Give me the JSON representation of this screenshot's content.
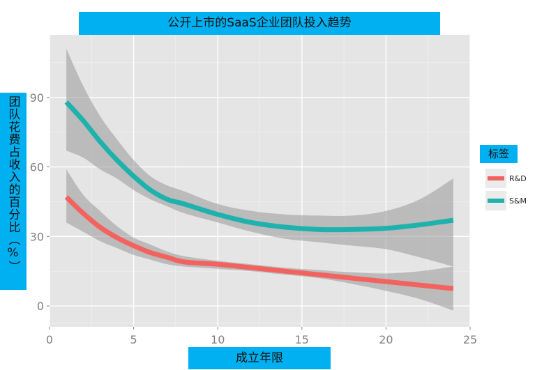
{
  "chart_data": {
    "type": "line",
    "title": "公开上市的SaaS企业团队投入趋势",
    "xlabel": "成立年限",
    "ylabel": "团队花费占收入的百分比（%）",
    "xlim": [
      0,
      25
    ],
    "ylim": [
      -9,
      117
    ],
    "x_ticks": [
      "0",
      "5",
      "10",
      "15",
      "20",
      "25"
    ],
    "y_ticks": [
      "0",
      "30",
      "60",
      "90"
    ],
    "grid": true,
    "legend": {
      "title": "标签",
      "position": "right"
    },
    "series": [
      {
        "name": "R&D",
        "color": "#f2635f",
        "x": [
          1,
          2,
          3,
          4,
          5,
          6,
          7,
          8,
          10,
          12,
          14,
          16,
          18,
          20,
          22,
          24
        ],
        "y": [
          47,
          40,
          34,
          29.5,
          26,
          23,
          21,
          19,
          18,
          16.5,
          15,
          13.5,
          12,
          10.5,
          9,
          7.5
        ],
        "ci_upper": [
          59,
          48,
          41,
          34.5,
          29.5,
          26.5,
          23.5,
          21.5,
          19.5,
          18,
          16.5,
          15.5,
          14.5,
          14,
          15,
          17
        ],
        "ci_lower": [
          36,
          32,
          28,
          25,
          22,
          20,
          18,
          17,
          16,
          15,
          13.5,
          12,
          9.5,
          6.5,
          3,
          -2
        ]
      },
      {
        "name": "S&M",
        "color": "#1fb2ad",
        "x": [
          1,
          2,
          3,
          4,
          5,
          6,
          7,
          8,
          10,
          12,
          14,
          16,
          18,
          20,
          22,
          24
        ],
        "y": [
          88,
          80,
          71,
          63,
          56,
          50,
          46,
          44,
          39.5,
          36,
          34,
          33,
          33,
          33.5,
          35,
          37
        ],
        "ci_upper": [
          111,
          95,
          82,
          72,
          63,
          56,
          52,
          49.5,
          44,
          41,
          39.5,
          39,
          39,
          41,
          46,
          55
        ],
        "ci_lower": [
          67,
          64,
          59,
          55,
          50,
          46,
          43,
          40,
          36,
          32,
          29,
          27.5,
          26,
          24.5,
          21,
          17
        ]
      }
    ]
  }
}
